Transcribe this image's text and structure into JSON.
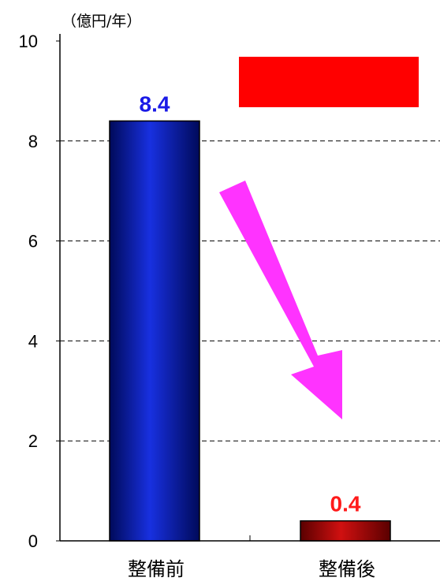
{
  "chart_data": {
    "type": "bar",
    "unit_label": "（億円/年）",
    "categories": [
      "整備前",
      "整備後"
    ],
    "values": [
      8.4,
      0.4
    ],
    "data_labels": [
      "8.4",
      "0.4"
    ],
    "ylim": [
      0,
      10
    ],
    "yticks": [
      "0",
      "2",
      "4",
      "6",
      "8",
      "10"
    ],
    "grid": true,
    "bar_colors": [
      "#0a14a0",
      "#a00000"
    ],
    "label_colors": [
      "#1a1ae6",
      "#ff1a1a"
    ],
    "arrow_color": "#ff33ff",
    "box_color": "#ff0000"
  }
}
